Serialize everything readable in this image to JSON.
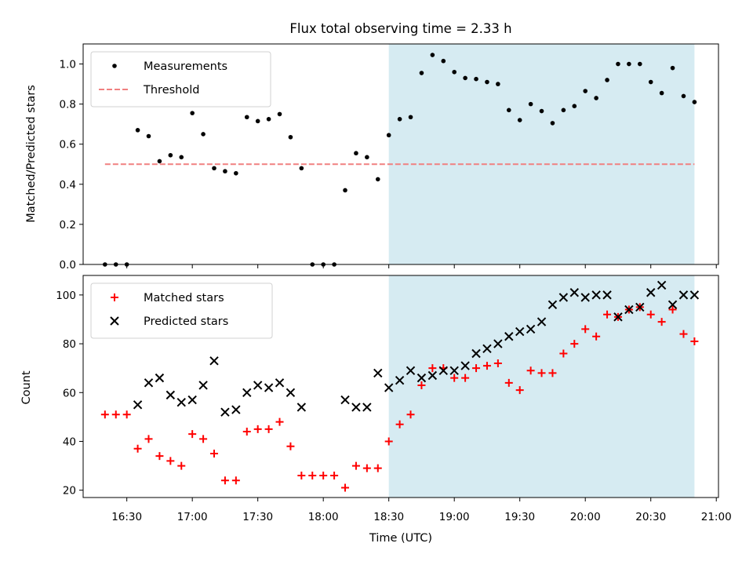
{
  "chart_data": [
    {
      "type": "scatter",
      "title": "Flux total observing time = 2.33 h",
      "xlabel": "",
      "ylabel": "Matched/Predicted stars",
      "xlim": [
        "16:10",
        "21:01"
      ],
      "ylim": [
        0,
        1.1
      ],
      "yticks": [
        0.0,
        0.2,
        0.4,
        0.6,
        0.8,
        1.0
      ],
      "ytick_labels": [
        "0.0",
        "0.2",
        "0.4",
        "0.6",
        "0.8",
        "1.0"
      ],
      "legend_location": "upper-left",
      "shaded_interval": {
        "start": "18:30",
        "end": "20:50",
        "color": "#add8e6"
      },
      "threshold": {
        "name": "Threshold",
        "value": 0.5,
        "start": "16:20",
        "end": "20:50",
        "color": "#f08080",
        "style": "dashed"
      },
      "series": [
        {
          "name": "Measurements",
          "marker": "dot",
          "color": "#000000",
          "x": [
            "16:20",
            "16:25",
            "16:30",
            "16:35",
            "16:40",
            "16:45",
            "16:50",
            "16:55",
            "17:00",
            "17:05",
            "17:10",
            "17:15",
            "17:20",
            "17:25",
            "17:30",
            "17:35",
            "17:40",
            "17:45",
            "17:50",
            "17:55",
            "18:00",
            "18:05",
            "18:10",
            "18:15",
            "18:20",
            "18:25",
            "18:30",
            "18:35",
            "18:40",
            "18:45",
            "18:50",
            "18:55",
            "19:00",
            "19:05",
            "19:10",
            "19:15",
            "19:20",
            "19:25",
            "19:30",
            "19:35",
            "19:40",
            "19:45",
            "19:50",
            "19:55",
            "20:00",
            "20:05",
            "20:10",
            "20:15",
            "20:20",
            "20:25",
            "20:30",
            "20:35",
            "20:40",
            "20:45",
            "20:50"
          ],
          "y": [
            0.0,
            0.0,
            0.0,
            0.67,
            0.64,
            0.515,
            0.545,
            0.535,
            0.755,
            0.65,
            0.48,
            0.465,
            0.455,
            0.735,
            0.715,
            0.725,
            0.75,
            0.635,
            0.48,
            0.0,
            0.0,
            0.0,
            0.37,
            0.555,
            0.535,
            0.425,
            0.645,
            0.725,
            0.735,
            0.955,
            1.045,
            1.015,
            0.96,
            0.93,
            0.925,
            0.91,
            0.9,
            0.77,
            0.72,
            0.8,
            0.765,
            0.705,
            0.77,
            0.79,
            0.865,
            0.83,
            0.92,
            1.0,
            1.0,
            1.0,
            0.91,
            0.855,
            0.98,
            0.84,
            0.81
          ]
        }
      ]
    },
    {
      "type": "scatter",
      "title": "",
      "xlabel": "Time (UTC)",
      "ylabel": "Count",
      "xlim": [
        "16:10",
        "21:01"
      ],
      "ylim": [
        17,
        108
      ],
      "xticks": [
        "16:30",
        "17:00",
        "17:30",
        "18:00",
        "18:30",
        "19:00",
        "19:30",
        "20:00",
        "20:30",
        "21:00"
      ],
      "yticks": [
        20,
        40,
        60,
        80,
        100
      ],
      "ytick_labels": [
        "20",
        "40",
        "60",
        "80",
        "100"
      ],
      "legend_location": "upper-left",
      "shaded_interval": {
        "start": "18:30",
        "end": "20:50",
        "color": "#add8e6"
      },
      "series": [
        {
          "name": "Matched stars",
          "marker": "plus",
          "color": "#ff0000",
          "x": [
            "16:20",
            "16:25",
            "16:30",
            "16:35",
            "16:40",
            "16:45",
            "16:50",
            "16:55",
            "17:00",
            "17:05",
            "17:10",
            "17:15",
            "17:20",
            "17:25",
            "17:30",
            "17:35",
            "17:40",
            "17:45",
            "17:50",
            "17:55",
            "18:00",
            "18:05",
            "18:10",
            "18:15",
            "18:20",
            "18:25",
            "18:30",
            "18:35",
            "18:40",
            "18:45",
            "18:50",
            "18:55",
            "19:00",
            "19:05",
            "19:10",
            "19:15",
            "19:20",
            "19:25",
            "19:30",
            "19:35",
            "19:40",
            "19:45",
            "19:50",
            "19:55",
            "20:00",
            "20:05",
            "20:10",
            "20:15",
            "20:20",
            "20:25",
            "20:30",
            "20:35",
            "20:40",
            "20:45",
            "20:50"
          ],
          "y": [
            51,
            51,
            51,
            37,
            41,
            34,
            32,
            30,
            43,
            41,
            35,
            24,
            24,
            44,
            45,
            45,
            48,
            38,
            26,
            26,
            26,
            26,
            21,
            30,
            29,
            29,
            40,
            47,
            51,
            63,
            70,
            70,
            66,
            66,
            70,
            71,
            72,
            64,
            61,
            69,
            68,
            68,
            76,
            80,
            86,
            83,
            92,
            91,
            94,
            95,
            92,
            89,
            94,
            84,
            81
          ]
        },
        {
          "name": "Predicted stars",
          "marker": "x",
          "color": "#000000",
          "x": [
            "16:35",
            "16:40",
            "16:45",
            "16:50",
            "16:55",
            "17:00",
            "17:05",
            "17:10",
            "17:15",
            "17:20",
            "17:25",
            "17:30",
            "17:35",
            "17:40",
            "17:45",
            "17:50",
            "18:10",
            "18:15",
            "18:20",
            "18:25",
            "18:30",
            "18:35",
            "18:40",
            "18:45",
            "18:50",
            "18:55",
            "19:00",
            "19:05",
            "19:10",
            "19:15",
            "19:20",
            "19:25",
            "19:30",
            "19:35",
            "19:40",
            "19:45",
            "19:50",
            "19:55",
            "20:00",
            "20:05",
            "20:10",
            "20:15",
            "20:20",
            "20:25",
            "20:30",
            "20:35",
            "20:40",
            "20:45",
            "20:50"
          ],
          "y": [
            55,
            64,
            66,
            59,
            56,
            57,
            63,
            73,
            52,
            53,
            60,
            63,
            62,
            64,
            60,
            54,
            57,
            54,
            54,
            68,
            62,
            65,
            69,
            66,
            67,
            69,
            69,
            71,
            76,
            78,
            80,
            83,
            85,
            86,
            89,
            96,
            99,
            101,
            99,
            100,
            100,
            91,
            94,
            95,
            101,
            104,
            96,
            100,
            100
          ]
        }
      ]
    }
  ]
}
